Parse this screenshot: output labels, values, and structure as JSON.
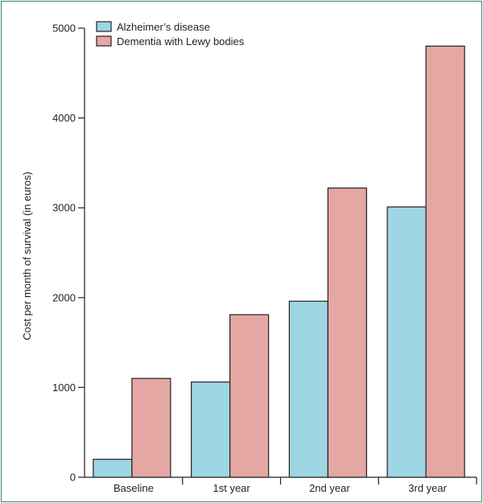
{
  "chart_data": {
    "type": "bar",
    "title": "",
    "xlabel": "",
    "ylabel": "Cost per month of survival (in euros)",
    "categories": [
      "Baseline",
      "1st year",
      "2nd year",
      "3rd year"
    ],
    "series": [
      {
        "name": "Alzheimer’s disease",
        "values": [
          200,
          1060,
          1960,
          3010
        ],
        "color": "#9ed6e3"
      },
      {
        "name": "Dementia with Lewy bodies",
        "values": [
          1100,
          1810,
          3220,
          4800
        ],
        "color": "#e4a7a3"
      }
    ],
    "ylim": [
      0,
      5000
    ],
    "yticks": [
      0,
      1000,
      2000,
      3000,
      4000,
      5000
    ],
    "grid": false,
    "legend_position": "top-left"
  },
  "colors": {
    "frame": "#2f8a77",
    "text": "#231f20"
  }
}
